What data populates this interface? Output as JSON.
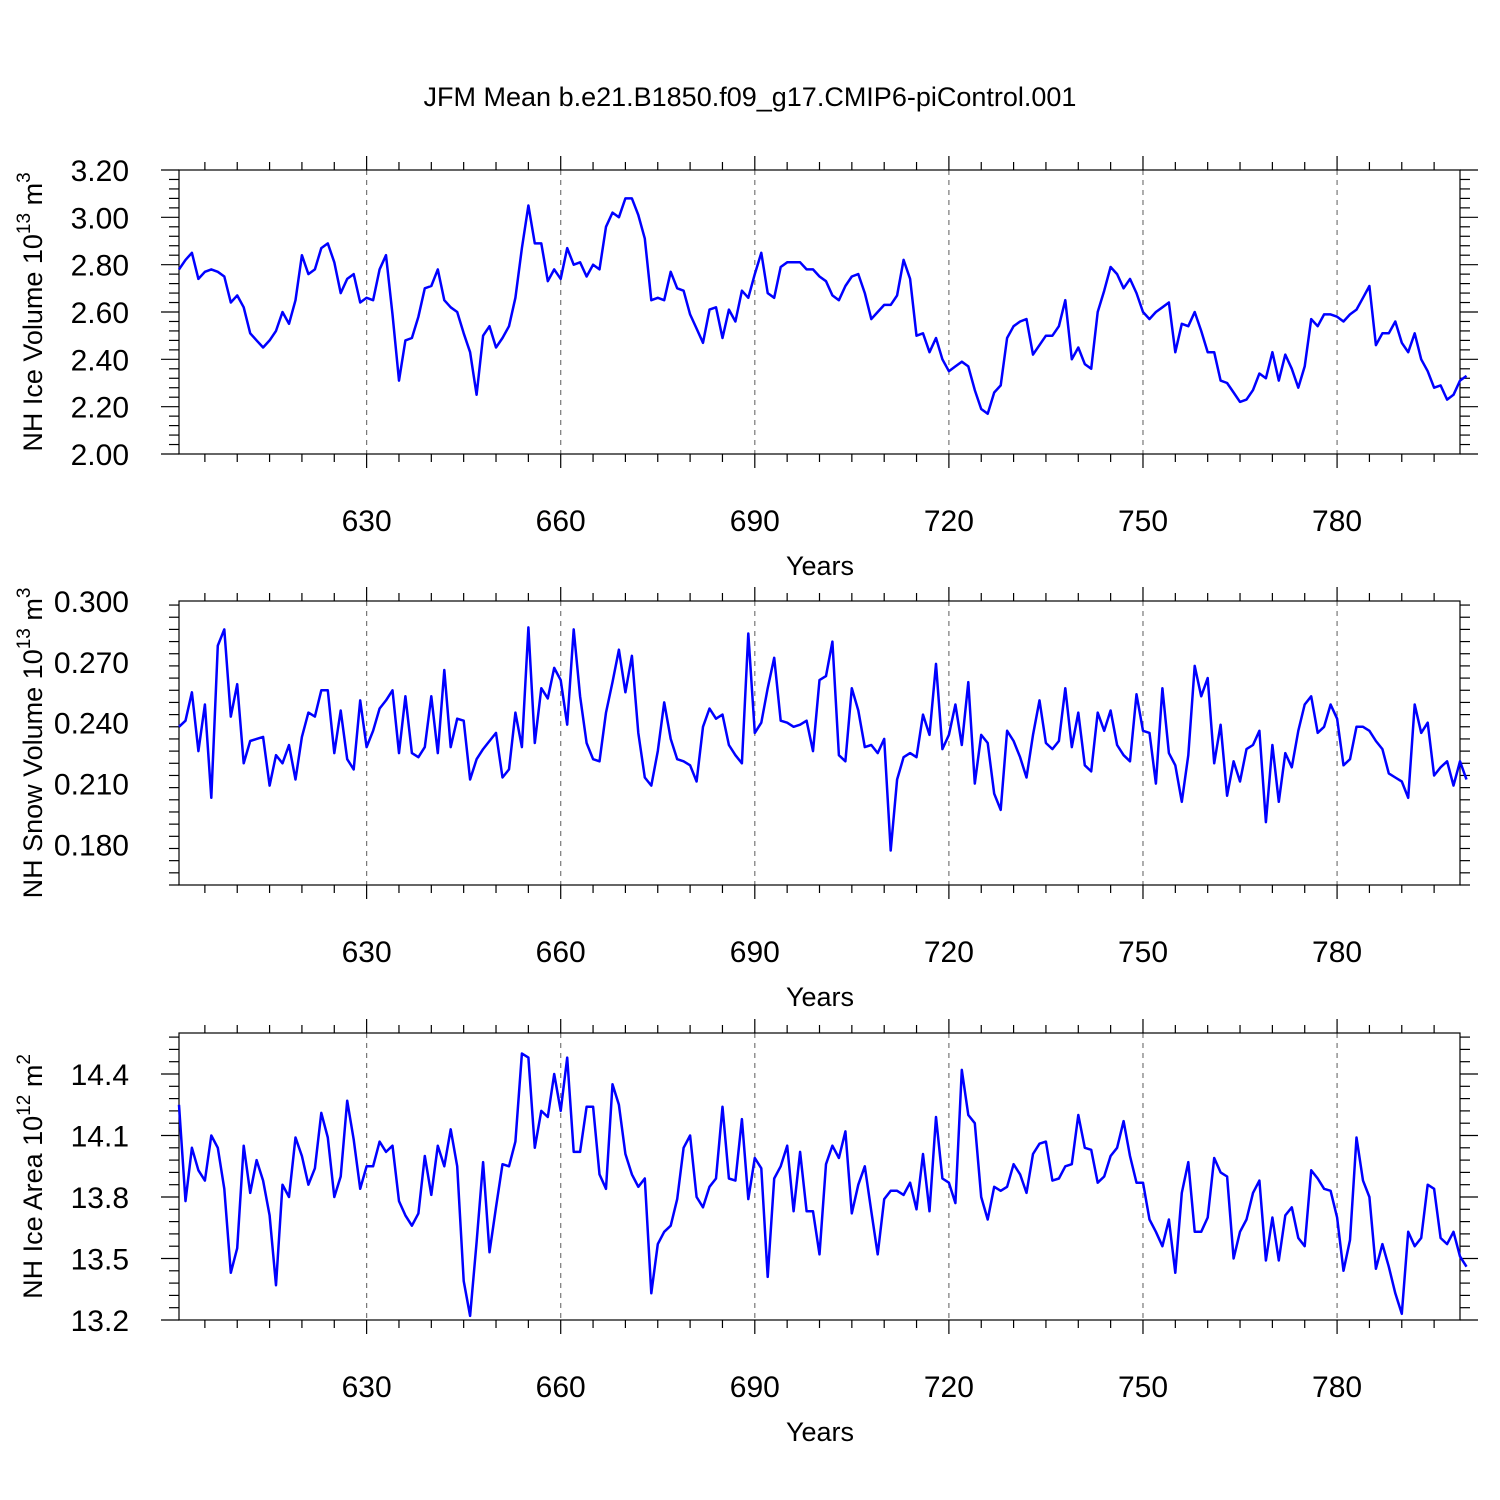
{
  "title": "JFM Mean b.e21.B1850.f09_g17.CMIP6-piControl.001",
  "line_color": "#0000ff",
  "chart_data": [
    {
      "type": "line",
      "ylabel": "NH Ice Volume 10",
      "ylabel_exp": "13",
      "ylabel_unit": " m",
      "ylabel_unit_exp": "3",
      "xlabel": "Years",
      "xlim": [
        601,
        799
      ],
      "ylim": [
        2.0,
        3.2
      ],
      "yticks": [
        2.0,
        2.2,
        2.4,
        2.6,
        2.8,
        3.0,
        3.2
      ],
      "ytick_labels": [
        "2.00",
        "2.20",
        "2.40",
        "2.60",
        "2.80",
        "3.00",
        "3.20"
      ],
      "xticks": [
        630,
        660,
        690,
        720,
        750,
        780
      ],
      "xtick_labels": [
        "630",
        "660",
        "690",
        "720",
        "750",
        "780"
      ],
      "x_start": 601,
      "values": [
        2.78,
        2.82,
        2.85,
        2.74,
        2.77,
        2.78,
        2.77,
        2.75,
        2.64,
        2.67,
        2.62,
        2.51,
        2.48,
        2.45,
        2.48,
        2.52,
        2.6,
        2.55,
        2.65,
        2.84,
        2.76,
        2.78,
        2.87,
        2.89,
        2.81,
        2.68,
        2.74,
        2.76,
        2.64,
        2.66,
        2.65,
        2.78,
        2.84,
        2.59,
        2.31,
        2.48,
        2.49,
        2.58,
        2.7,
        2.71,
        2.78,
        2.65,
        2.62,
        2.6,
        2.51,
        2.43,
        2.25,
        2.5,
        2.54,
        2.45,
        2.49,
        2.54,
        2.66,
        2.87,
        3.05,
        2.89,
        2.89,
        2.73,
        2.78,
        2.74,
        2.87,
        2.8,
        2.81,
        2.75,
        2.8,
        2.78,
        2.96,
        3.02,
        3.0,
        3.08,
        3.08,
        3.01,
        2.91,
        2.65,
        2.66,
        2.65,
        2.77,
        2.7,
        2.69,
        2.59,
        2.53,
        2.47,
        2.61,
        2.62,
        2.49,
        2.61,
        2.56,
        2.69,
        2.66,
        2.76,
        2.85,
        2.68,
        2.66,
        2.79,
        2.81,
        2.81,
        2.81,
        2.78,
        2.78,
        2.75,
        2.73,
        2.67,
        2.65,
        2.71,
        2.75,
        2.76,
        2.68,
        2.57,
        2.6,
        2.63,
        2.63,
        2.67,
        2.82,
        2.74,
        2.5,
        2.51,
        2.43,
        2.49,
        2.4,
        2.35,
        2.37,
        2.39,
        2.37,
        2.27,
        2.19,
        2.17,
        2.26,
        2.29,
        2.49,
        2.54,
        2.56,
        2.57,
        2.42,
        2.46,
        2.5,
        2.5,
        2.54,
        2.65,
        2.4,
        2.45,
        2.38,
        2.36,
        2.6,
        2.69,
        2.79,
        2.76,
        2.7,
        2.74,
        2.68,
        2.6,
        2.57,
        2.6,
        2.62,
        2.64,
        2.43,
        2.55,
        2.54,
        2.6,
        2.52,
        2.43,
        2.43,
        2.31,
        2.3,
        2.26,
        2.22,
        2.23,
        2.27,
        2.34,
        2.32,
        2.43,
        2.31,
        2.42,
        2.36,
        2.28,
        2.37,
        2.57,
        2.54,
        2.59,
        2.59,
        2.58,
        2.56,
        2.59,
        2.61,
        2.66,
        2.71,
        2.46,
        2.51,
        2.51,
        2.56,
        2.47,
        2.43,
        2.51,
        2.4,
        2.35,
        2.28,
        2.29,
        2.23,
        2.25,
        2.31,
        2.33
      ]
    },
    {
      "type": "line",
      "ylabel": "NH Snow Volume 10",
      "ylabel_exp": "13",
      "ylabel_unit": " m",
      "ylabel_unit_exp": "3",
      "xlabel": "Years",
      "xlim": [
        601,
        799
      ],
      "ylim": [
        0.16,
        0.3
      ],
      "yticks": [
        0.18,
        0.21,
        0.24,
        0.27,
        0.3
      ],
      "ytick_labels": [
        "0.180",
        "0.210",
        "0.240",
        "0.270",
        "0.300"
      ],
      "xticks": [
        630,
        660,
        690,
        720,
        750,
        780
      ],
      "xtick_labels": [
        "630",
        "660",
        "690",
        "720",
        "750",
        "780"
      ],
      "x_start": 601,
      "values": [
        0.238,
        0.241,
        0.255,
        0.226,
        0.249,
        0.203,
        0.278,
        0.286,
        0.243,
        0.259,
        0.22,
        0.231,
        0.232,
        0.233,
        0.209,
        0.224,
        0.22,
        0.229,
        0.212,
        0.233,
        0.245,
        0.243,
        0.256,
        0.256,
        0.225,
        0.246,
        0.222,
        0.217,
        0.251,
        0.228,
        0.236,
        0.247,
        0.251,
        0.256,
        0.225,
        0.253,
        0.225,
        0.223,
        0.228,
        0.253,
        0.225,
        0.266,
        0.228,
        0.242,
        0.241,
        0.212,
        0.222,
        0.227,
        0.231,
        0.235,
        0.213,
        0.217,
        0.245,
        0.228,
        0.287,
        0.23,
        0.257,
        0.252,
        0.267,
        0.261,
        0.239,
        0.286,
        0.253,
        0.23,
        0.222,
        0.221,
        0.245,
        0.26,
        0.276,
        0.255,
        0.273,
        0.235,
        0.213,
        0.209,
        0.226,
        0.25,
        0.232,
        0.222,
        0.221,
        0.219,
        0.211,
        0.238,
        0.247,
        0.242,
        0.244,
        0.229,
        0.224,
        0.22,
        0.284,
        0.235,
        0.24,
        0.257,
        0.272,
        0.241,
        0.24,
        0.238,
        0.239,
        0.241,
        0.226,
        0.261,
        0.263,
        0.28,
        0.224,
        0.221,
        0.257,
        0.246,
        0.228,
        0.229,
        0.225,
        0.232,
        0.177,
        0.212,
        0.223,
        0.225,
        0.223,
        0.244,
        0.234,
        0.269,
        0.227,
        0.234,
        0.249,
        0.229,
        0.26,
        0.21,
        0.234,
        0.23,
        0.205,
        0.197,
        0.236,
        0.231,
        0.223,
        0.213,
        0.234,
        0.251,
        0.23,
        0.227,
        0.231,
        0.257,
        0.228,
        0.245,
        0.219,
        0.216,
        0.245,
        0.236,
        0.246,
        0.229,
        0.224,
        0.221,
        0.254,
        0.236,
        0.235,
        0.21,
        0.257,
        0.225,
        0.219,
        0.201,
        0.224,
        0.268,
        0.253,
        0.262,
        0.22,
        0.239,
        0.204,
        0.221,
        0.211,
        0.227,
        0.229,
        0.236,
        0.191,
        0.229,
        0.201,
        0.225,
        0.218,
        0.236,
        0.249,
        0.253,
        0.235,
        0.238,
        0.249,
        0.242,
        0.219,
        0.222,
        0.238,
        0.238,
        0.236,
        0.231,
        0.227,
        0.215,
        0.213,
        0.211,
        0.203,
        0.249,
        0.235,
        0.24,
        0.214,
        0.218,
        0.221,
        0.209,
        0.221,
        0.212
      ]
    },
    {
      "type": "line",
      "ylabel": "NH Ice Area 10",
      "ylabel_exp": "12",
      "ylabel_unit": " m",
      "ylabel_unit_exp": "2",
      "xlabel": "Years",
      "xlim": [
        601,
        799
      ],
      "ylim": [
        13.2,
        14.6
      ],
      "yticks": [
        13.2,
        13.5,
        13.8,
        14.1,
        14.4
      ],
      "ytick_labels": [
        "13.2",
        "13.5",
        "13.8",
        "14.1",
        "14.4"
      ],
      "xticks": [
        630,
        660,
        690,
        720,
        750,
        780
      ],
      "xtick_labels": [
        "630",
        "660",
        "690",
        "720",
        "750",
        "780"
      ],
      "x_start": 601,
      "values": [
        14.25,
        13.78,
        14.04,
        13.93,
        13.88,
        14.1,
        14.04,
        13.84,
        13.43,
        13.55,
        14.05,
        13.82,
        13.98,
        13.88,
        13.71,
        13.37,
        13.86,
        13.8,
        14.09,
        14.0,
        13.86,
        13.94,
        14.21,
        14.09,
        13.8,
        13.9,
        14.27,
        14.08,
        13.84,
        13.95,
        13.95,
        14.07,
        14.02,
        14.05,
        13.78,
        13.71,
        13.66,
        13.72,
        14.0,
        13.81,
        14.05,
        13.95,
        14.13,
        13.95,
        13.39,
        13.22,
        13.58,
        13.97,
        13.53,
        13.75,
        13.96,
        13.95,
        14.07,
        14.5,
        14.48,
        14.04,
        14.22,
        14.19,
        14.4,
        14.22,
        14.48,
        14.02,
        14.02,
        14.24,
        14.24,
        13.91,
        13.84,
        14.35,
        14.25,
        14.01,
        13.91,
        13.85,
        13.89,
        13.33,
        13.57,
        13.63,
        13.66,
        13.79,
        14.04,
        14.1,
        13.8,
        13.75,
        13.85,
        13.89,
        14.24,
        13.89,
        13.88,
        14.18,
        13.79,
        13.99,
        13.94,
        13.41,
        13.89,
        13.95,
        14.05,
        13.73,
        14.02,
        13.73,
        13.73,
        13.52,
        13.96,
        14.05,
        13.99,
        14.12,
        13.72,
        13.86,
        13.95,
        13.73,
        13.52,
        13.79,
        13.83,
        13.83,
        13.81,
        13.87,
        13.74,
        14.01,
        13.73,
        14.19,
        13.89,
        13.87,
        13.77,
        14.42,
        14.2,
        14.16,
        13.8,
        13.69,
        13.85,
        13.83,
        13.85,
        13.96,
        13.91,
        13.82,
        14.01,
        14.06,
        14.07,
        13.88,
        13.89,
        13.95,
        13.96,
        14.2,
        14.04,
        14.03,
        13.87,
        13.9,
        14.0,
        14.04,
        14.17,
        14.0,
        13.87,
        13.87,
        13.69,
        13.63,
        13.56,
        13.69,
        13.43,
        13.82,
        13.97,
        13.63,
        13.63,
        13.7,
        13.99,
        13.92,
        13.9,
        13.5,
        13.63,
        13.69,
        13.82,
        13.88,
        13.49,
        13.7,
        13.49,
        13.71,
        13.75,
        13.6,
        13.56,
        13.93,
        13.89,
        13.84,
        13.83,
        13.7,
        13.44,
        13.59,
        14.09,
        13.88,
        13.8,
        13.45,
        13.57,
        13.46,
        13.33,
        13.23,
        13.63,
        13.56,
        13.6,
        13.86,
        13.84,
        13.6,
        13.57,
        13.63,
        13.51,
        13.46
      ]
    }
  ]
}
